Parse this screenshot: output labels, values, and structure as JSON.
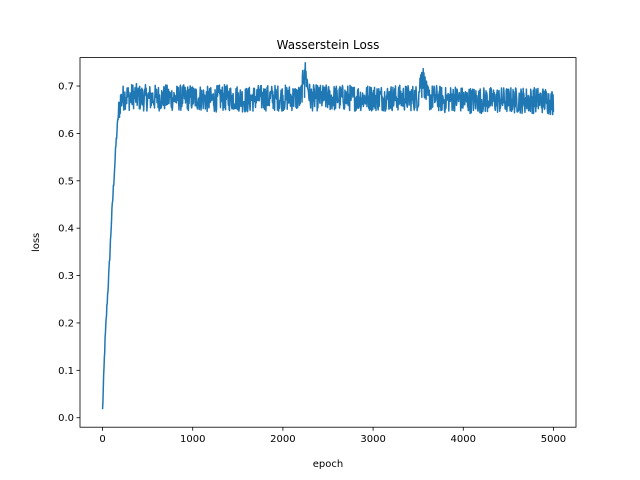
{
  "chart_data": {
    "type": "line",
    "title": "Wasserstein Loss",
    "xlabel": "epoch",
    "ylabel": "loss",
    "xlim": [
      -250,
      5250
    ],
    "ylim": [
      -0.02,
      0.76
    ],
    "xticks": [
      0,
      1000,
      2000,
      3000,
      4000,
      5000
    ],
    "yticks": [
      0.0,
      0.1,
      0.2,
      0.3,
      0.4,
      0.5,
      0.6,
      0.7
    ],
    "grid": false,
    "color": "#1f77b4",
    "series": [
      {
        "x": [
          0,
          25,
          50,
          75,
          100,
          125,
          150,
          175,
          200,
          230,
          260,
          300,
          350,
          400,
          500,
          600,
          700,
          800,
          900,
          1000,
          1100,
          1200,
          1300,
          1400,
          1500,
          1600,
          1700,
          1800,
          1900,
          2000,
          2100,
          2200,
          2240,
          2300,
          2400,
          2500,
          2600,
          2700,
          2800,
          2900,
          3000,
          3100,
          3200,
          3300,
          3400,
          3500,
          3540,
          3600,
          3700,
          3800,
          3900,
          4000,
          4100,
          4200,
          4300,
          4400,
          4500,
          4600,
          4700,
          4800,
          4900,
          5000
        ],
        "y": [
          0.015,
          0.15,
          0.24,
          0.32,
          0.42,
          0.5,
          0.58,
          0.64,
          0.67,
          0.675,
          0.68,
          0.675,
          0.68,
          0.675,
          0.675,
          0.675,
          0.675,
          0.675,
          0.675,
          0.675,
          0.675,
          0.67,
          0.675,
          0.675,
          0.675,
          0.67,
          0.675,
          0.675,
          0.675,
          0.675,
          0.675,
          0.675,
          0.735,
          0.675,
          0.675,
          0.675,
          0.675,
          0.675,
          0.675,
          0.675,
          0.675,
          0.675,
          0.675,
          0.675,
          0.675,
          0.675,
          0.73,
          0.675,
          0.675,
          0.67,
          0.675,
          0.67,
          0.67,
          0.67,
          0.67,
          0.67,
          0.67,
          0.67,
          0.67,
          0.67,
          0.67,
          0.665
        ]
      }
    ]
  }
}
